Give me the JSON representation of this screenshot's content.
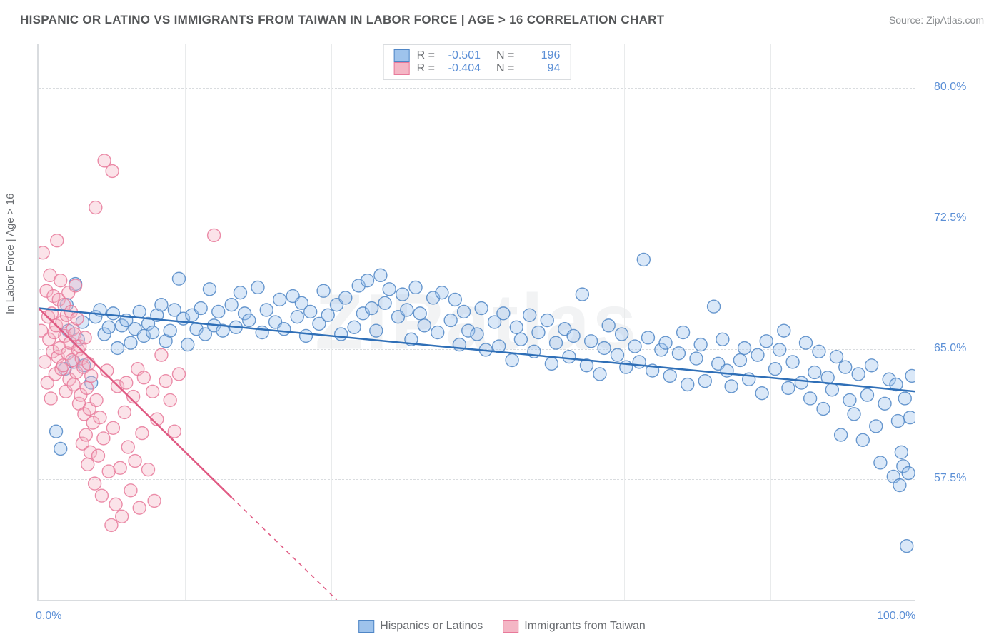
{
  "title": "HISPANIC OR LATINO VS IMMIGRANTS FROM TAIWAN IN LABOR FORCE | AGE > 16 CORRELATION CHART",
  "source_label": "Source: ",
  "source_name": "ZipAtlas.com",
  "ylabel": "In Labor Force | Age > 16",
  "watermark": "ZIPatlas",
  "chart": {
    "type": "scatter",
    "xlim": [
      0,
      100
    ],
    "ylim": [
      50.5,
      82.5
    ],
    "ytick_values": [
      57.5,
      65.0,
      72.5,
      80.0
    ],
    "ytick_labels": [
      "57.5%",
      "65.0%",
      "72.5%",
      "80.0%"
    ],
    "xtick_values": [
      0,
      100
    ],
    "xtick_labels": [
      "0.0%",
      "100.0%"
    ],
    "x_minor_ticks": [
      16.67,
      33.33,
      50.0,
      66.67,
      83.33
    ],
    "grid_color": "#d9dcdf",
    "minor_grid_color": "#e9ebec",
    "background_color": "#ffffff",
    "marker_radius": 9,
    "marker_opacity": 0.38,
    "marker_stroke_opacity": 0.85,
    "line_width": 2.5,
    "series": [
      {
        "name": "Hispanics or Latinos",
        "fill": "#9ec3ec",
        "stroke": "#4f86c6",
        "line_color": "#2f6fb7",
        "R": "-0.501",
        "N": "196",
        "trend": {
          "x1": 0,
          "y1": 67.3,
          "x2": 100,
          "y2": 62.5
        },
        "points": [
          [
            2,
            60.2
          ],
          [
            2.5,
            59.2
          ],
          [
            3,
            63.8
          ],
          [
            3.2,
            67.5
          ],
          [
            3.4,
            66.0
          ],
          [
            4,
            64.2
          ],
          [
            4.2,
            68.7
          ],
          [
            4.5,
            65.5
          ],
          [
            5,
            66.5
          ],
          [
            5.2,
            64.0
          ],
          [
            6,
            63.0
          ],
          [
            6.5,
            66.8
          ],
          [
            7,
            67.2
          ],
          [
            7.5,
            65.8
          ],
          [
            8,
            66.2
          ],
          [
            8.5,
            67.0
          ],
          [
            9,
            65.0
          ],
          [
            9.5,
            66.3
          ],
          [
            10,
            66.6
          ],
          [
            10.5,
            65.3
          ],
          [
            11,
            66.1
          ],
          [
            11.5,
            67.1
          ],
          [
            12,
            65.7
          ],
          [
            12.5,
            66.4
          ],
          [
            13,
            65.9
          ],
          [
            13.5,
            66.9
          ],
          [
            14,
            67.5
          ],
          [
            14.5,
            65.4
          ],
          [
            15,
            66.0
          ],
          [
            15.5,
            67.2
          ],
          [
            16,
            69.0
          ],
          [
            16.5,
            66.7
          ],
          [
            17,
            65.2
          ],
          [
            17.5,
            66.9
          ],
          [
            18,
            66.1
          ],
          [
            18.5,
            67.3
          ],
          [
            19,
            65.8
          ],
          [
            19.5,
            68.4
          ],
          [
            20,
            66.3
          ],
          [
            20.5,
            67.1
          ],
          [
            21,
            66.0
          ],
          [
            22,
            67.5
          ],
          [
            22.5,
            66.2
          ],
          [
            23,
            68.2
          ],
          [
            23.5,
            67.0
          ],
          [
            24,
            66.6
          ],
          [
            25,
            68.5
          ],
          [
            25.5,
            65.9
          ],
          [
            26,
            67.2
          ],
          [
            27,
            66.5
          ],
          [
            27.5,
            67.8
          ],
          [
            28,
            66.1
          ],
          [
            29,
            68.0
          ],
          [
            29.5,
            66.8
          ],
          [
            30,
            67.6
          ],
          [
            30.5,
            65.7
          ],
          [
            31,
            67.1
          ],
          [
            32,
            66.4
          ],
          [
            32.5,
            68.3
          ],
          [
            33,
            66.9
          ],
          [
            34,
            67.5
          ],
          [
            34.5,
            65.8
          ],
          [
            35,
            67.9
          ],
          [
            36,
            66.2
          ],
          [
            36.5,
            68.6
          ],
          [
            37,
            67.0
          ],
          [
            37.5,
            68.9
          ],
          [
            38,
            67.3
          ],
          [
            38.5,
            66.0
          ],
          [
            39,
            69.2
          ],
          [
            39.5,
            67.6
          ],
          [
            40,
            68.4
          ],
          [
            41,
            66.8
          ],
          [
            41.5,
            68.1
          ],
          [
            42,
            67.2
          ],
          [
            42.5,
            65.5
          ],
          [
            43,
            68.5
          ],
          [
            43.5,
            67.0
          ],
          [
            44,
            66.3
          ],
          [
            45,
            67.9
          ],
          [
            45.5,
            65.9
          ],
          [
            46,
            68.2
          ],
          [
            47,
            66.6
          ],
          [
            47.5,
            67.8
          ],
          [
            48,
            65.2
          ],
          [
            48.5,
            67.1
          ],
          [
            49,
            66.0
          ],
          [
            50,
            65.8
          ],
          [
            50.5,
            67.3
          ],
          [
            51,
            64.9
          ],
          [
            52,
            66.5
          ],
          [
            52.5,
            65.1
          ],
          [
            53,
            67.0
          ],
          [
            54,
            64.3
          ],
          [
            54.5,
            66.2
          ],
          [
            55,
            65.5
          ],
          [
            56,
            66.9
          ],
          [
            56.5,
            64.8
          ],
          [
            57,
            65.9
          ],
          [
            58,
            66.6
          ],
          [
            58.5,
            64.1
          ],
          [
            59,
            65.3
          ],
          [
            60,
            66.1
          ],
          [
            60.5,
            64.5
          ],
          [
            61,
            65.7
          ],
          [
            62,
            68.1
          ],
          [
            62.5,
            64.0
          ],
          [
            63,
            65.4
          ],
          [
            64,
            63.5
          ],
          [
            64.5,
            65.0
          ],
          [
            65,
            66.3
          ],
          [
            66,
            64.6
          ],
          [
            66.5,
            65.8
          ],
          [
            67,
            63.9
          ],
          [
            68,
            65.1
          ],
          [
            68.5,
            64.2
          ],
          [
            69,
            70.1
          ],
          [
            69.5,
            65.6
          ],
          [
            70,
            63.7
          ],
          [
            71,
            64.9
          ],
          [
            71.5,
            65.3
          ],
          [
            72,
            63.4
          ],
          [
            73,
            64.7
          ],
          [
            73.5,
            65.9
          ],
          [
            74,
            62.9
          ],
          [
            75,
            64.4
          ],
          [
            75.5,
            65.2
          ],
          [
            76,
            63.1
          ],
          [
            77,
            67.4
          ],
          [
            77.5,
            64.1
          ],
          [
            78,
            65.5
          ],
          [
            78.5,
            63.7
          ],
          [
            79,
            62.8
          ],
          [
            80,
            64.3
          ],
          [
            80.5,
            65.0
          ],
          [
            81,
            63.2
          ],
          [
            82,
            64.6
          ],
          [
            82.5,
            62.4
          ],
          [
            83,
            65.4
          ],
          [
            84,
            63.8
          ],
          [
            84.5,
            64.9
          ],
          [
            85,
            66.0
          ],
          [
            85.5,
            62.7
          ],
          [
            86,
            64.2
          ],
          [
            87,
            63.0
          ],
          [
            87.5,
            65.3
          ],
          [
            88,
            62.1
          ],
          [
            88.5,
            63.6
          ],
          [
            89,
            64.8
          ],
          [
            89.5,
            61.5
          ],
          [
            90,
            63.3
          ],
          [
            90.5,
            62.6
          ],
          [
            91,
            64.5
          ],
          [
            91.5,
            60.0
          ],
          [
            92,
            63.9
          ],
          [
            92.5,
            62.0
          ],
          [
            93,
            61.2
          ],
          [
            93.5,
            63.5
          ],
          [
            94,
            59.7
          ],
          [
            94.5,
            62.3
          ],
          [
            95,
            64.0
          ],
          [
            95.5,
            60.5
          ],
          [
            96,
            58.4
          ],
          [
            96.5,
            61.8
          ],
          [
            97,
            63.2
          ],
          [
            97.5,
            57.6
          ],
          [
            97.8,
            62.9
          ],
          [
            98,
            60.8
          ],
          [
            98.2,
            57.1
          ],
          [
            98.4,
            59.0
          ],
          [
            98.6,
            58.2
          ],
          [
            98.8,
            62.1
          ],
          [
            99,
            53.6
          ],
          [
            99.2,
            57.8
          ],
          [
            99.4,
            61.0
          ],
          [
            99.6,
            63.4
          ]
        ]
      },
      {
        "name": "Immigrants from Taiwan",
        "fill": "#f4b6c5",
        "stroke": "#e8799a",
        "line_color": "#e05a83",
        "R": "-0.404",
        "N": "94",
        "trend": {
          "x1": 0,
          "y1": 67.3,
          "x2": 34,
          "y2": 50.5
        },
        "trend_dash": {
          "x1": 22,
          "y1": 56.4,
          "x2": 34,
          "y2": 50.5
        },
        "points": [
          [
            0.3,
            66.0
          ],
          [
            0.5,
            70.5
          ],
          [
            0.7,
            64.2
          ],
          [
            0.9,
            68.3
          ],
          [
            1.0,
            63.0
          ],
          [
            1.1,
            66.8
          ],
          [
            1.2,
            65.5
          ],
          [
            1.3,
            69.2
          ],
          [
            1.4,
            62.1
          ],
          [
            1.5,
            67.0
          ],
          [
            1.6,
            64.8
          ],
          [
            1.7,
            68.0
          ],
          [
            1.8,
            65.9
          ],
          [
            1.9,
            63.5
          ],
          [
            2.0,
            66.3
          ],
          [
            2.1,
            71.2
          ],
          [
            2.2,
            64.5
          ],
          [
            2.3,
            67.8
          ],
          [
            2.4,
            65.0
          ],
          [
            2.5,
            68.9
          ],
          [
            2.6,
            63.8
          ],
          [
            2.7,
            66.5
          ],
          [
            2.8,
            64.0
          ],
          [
            2.9,
            67.5
          ],
          [
            3.0,
            65.7
          ],
          [
            3.1,
            62.5
          ],
          [
            3.2,
            66.9
          ],
          [
            3.3,
            64.7
          ],
          [
            3.4,
            68.2
          ],
          [
            3.5,
            63.2
          ],
          [
            3.6,
            65.3
          ],
          [
            3.7,
            67.1
          ],
          [
            3.8,
            64.3
          ],
          [
            3.9,
            66.1
          ],
          [
            4.0,
            62.9
          ],
          [
            4.1,
            65.8
          ],
          [
            4.2,
            68.6
          ],
          [
            4.3,
            63.6
          ],
          [
            4.4,
            66.7
          ],
          [
            4.5,
            64.9
          ],
          [
            4.6,
            61.8
          ],
          [
            4.7,
            65.1
          ],
          [
            4.8,
            62.3
          ],
          [
            4.9,
            64.4
          ],
          [
            5.0,
            59.5
          ],
          [
            5.1,
            63.9
          ],
          [
            5.2,
            61.2
          ],
          [
            5.3,
            65.6
          ],
          [
            5.4,
            60.0
          ],
          [
            5.5,
            62.7
          ],
          [
            5.6,
            58.3
          ],
          [
            5.7,
            64.1
          ],
          [
            5.8,
            61.5
          ],
          [
            5.9,
            59.0
          ],
          [
            6.0,
            63.4
          ],
          [
            6.2,
            60.7
          ],
          [
            6.4,
            57.2
          ],
          [
            6.5,
            73.1
          ],
          [
            6.6,
            62.0
          ],
          [
            6.8,
            58.8
          ],
          [
            7.0,
            61.0
          ],
          [
            7.2,
            56.5
          ],
          [
            7.4,
            59.8
          ],
          [
            7.5,
            75.8
          ],
          [
            7.8,
            63.7
          ],
          [
            8.0,
            57.9
          ],
          [
            8.3,
            54.8
          ],
          [
            8.4,
            75.2
          ],
          [
            8.5,
            60.4
          ],
          [
            8.8,
            56.0
          ],
          [
            9.0,
            62.8
          ],
          [
            9.3,
            58.1
          ],
          [
            9.5,
            55.3
          ],
          [
            9.8,
            61.3
          ],
          [
            10.0,
            63.0
          ],
          [
            10.2,
            59.3
          ],
          [
            10.5,
            56.8
          ],
          [
            10.8,
            62.2
          ],
          [
            11.0,
            58.5
          ],
          [
            11.3,
            63.8
          ],
          [
            11.5,
            55.8
          ],
          [
            11.8,
            60.1
          ],
          [
            12.0,
            63.3
          ],
          [
            12.5,
            58.0
          ],
          [
            13.0,
            62.5
          ],
          [
            13.2,
            56.2
          ],
          [
            13.5,
            60.9
          ],
          [
            14.0,
            64.6
          ],
          [
            14.5,
            63.1
          ],
          [
            15.0,
            62.0
          ],
          [
            15.5,
            60.2
          ],
          [
            16.0,
            63.5
          ],
          [
            20.0,
            71.5
          ]
        ]
      }
    ]
  },
  "stats_box": {
    "rows": [
      {
        "swatch_fill": "#9ec3ec",
        "swatch_stroke": "#4f86c6",
        "r_label": "R =",
        "r_val": "-0.501",
        "n_label": "N =",
        "n_val": "196"
      },
      {
        "swatch_fill": "#f4b6c5",
        "swatch_stroke": "#e8799a",
        "r_label": "R =",
        "r_val": "-0.404",
        "n_label": "N =",
        "n_val": "94"
      }
    ]
  },
  "bottom_legend": [
    {
      "swatch_fill": "#9ec3ec",
      "swatch_stroke": "#4f86c6",
      "label": "Hispanics or Latinos"
    },
    {
      "swatch_fill": "#f4b6c5",
      "swatch_stroke": "#e8799a",
      "label": "Immigrants from Taiwan"
    }
  ]
}
